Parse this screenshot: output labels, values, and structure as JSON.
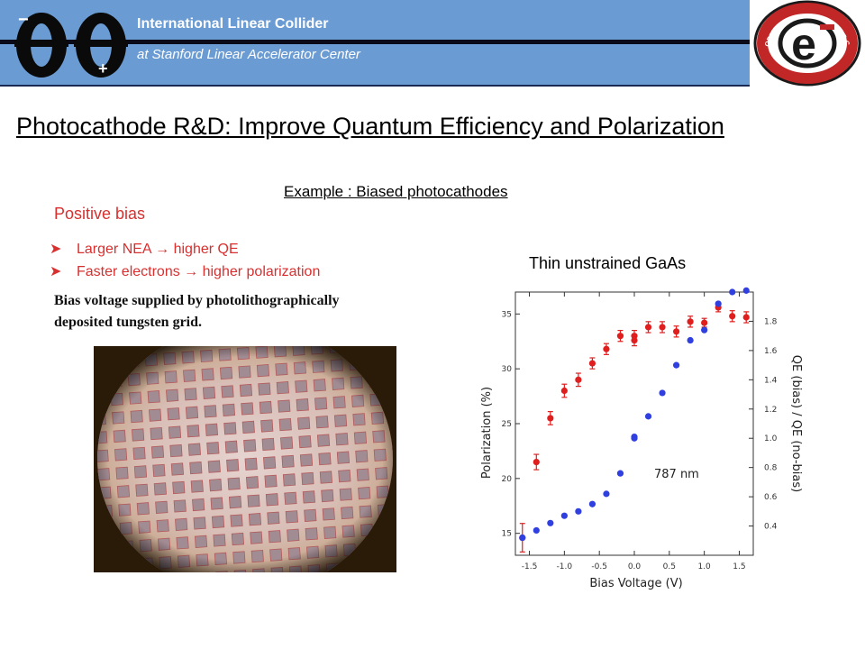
{
  "header": {
    "title": "International Linear Collider",
    "subtitle": "at Stanford Linear Accelerator Center",
    "logo_minus": "−",
    "logo_plus": "+"
  },
  "seal": {
    "top_ring_text": "STANFORD LINEAR ACCELERATOR CENTER",
    "bottom_ring_text": "ILC POLARIZED SOURCE",
    "center": "e"
  },
  "page_title": "Photocathode R&D: Improve Quantum Efficiency and Polarization",
  "example_heading": "Example : Biased photocathodes",
  "positive_bias": "Positive bias",
  "bullets": [
    "Larger NEA → higher QE",
    "Faster electrons → higher polarization"
  ],
  "bias_note": [
    "Bias voltage supplied by photolithographically",
    "deposited tungsten grid."
  ],
  "chart_heading": "Thin unstrained GaAs",
  "chart_data": {
    "type": "scatter",
    "xlabel": "Bias Voltage (V)",
    "ylabel": "Polarization (%)",
    "y2label": "QE (bias) / QE (no-bias)",
    "annotation": "787 nm",
    "xlim": [
      -1.7,
      1.7
    ],
    "ylim": [
      13,
      37
    ],
    "y2lim": [
      0.2,
      2.0
    ],
    "x_ticks": [
      -1.5,
      -1.0,
      -0.5,
      0.0,
      0.5,
      1.0,
      1.5
    ],
    "x_tick_labels": [
      "-1.5",
      "-1.0",
      "-0.5",
      "0.0",
      "0.5",
      "1.0",
      "1.5"
    ],
    "y_ticks": [
      15,
      20,
      25,
      30,
      35
    ],
    "y_tick_labels": [
      "15",
      "20",
      "25",
      "30",
      "35"
    ],
    "y2_ticks": [
      0.4,
      0.6,
      0.8,
      1.0,
      1.2,
      1.4,
      1.6,
      1.8
    ],
    "y2_tick_labels": [
      "0.4",
      "0.6",
      "0.8",
      "1.0",
      "1.2",
      "1.4",
      "1.6",
      "1.8"
    ],
    "grid": false,
    "series": [
      {
        "color": "#e01e1e",
        "axis": "left",
        "x": [
          -1.6,
          -1.4,
          -1.2,
          -1.0,
          -0.8,
          -0.6,
          -0.4,
          -0.2,
          0.0,
          0.0,
          0.2,
          0.4,
          0.6,
          0.8,
          1.0,
          1.2,
          1.4,
          1.6
        ],
        "y": [
          14.6,
          21.5,
          25.5,
          28.0,
          29.0,
          30.5,
          31.8,
          33.0,
          33.0,
          32.6,
          33.8,
          33.8,
          33.4,
          34.3,
          34.2,
          35.6,
          34.8,
          34.7
        ],
        "err": [
          1.3,
          0.7,
          0.6,
          0.6,
          0.6,
          0.5,
          0.5,
          0.5,
          0.5,
          0.5,
          0.5,
          0.5,
          0.5,
          0.5,
          0.4,
          0.4,
          0.5,
          0.5
        ]
      },
      {
        "color": "#2f3fe0",
        "axis": "right",
        "x": [
          -1.6,
          -1.4,
          -1.2,
          -1.0,
          -0.8,
          -0.6,
          -0.4,
          -0.2,
          0.0,
          0.0,
          0.2,
          0.4,
          0.6,
          0.8,
          1.0,
          1.2,
          1.4,
          1.6
        ],
        "y": [
          0.32,
          0.37,
          0.42,
          0.47,
          0.5,
          0.55,
          0.62,
          0.76,
          1.0,
          1.01,
          1.15,
          1.31,
          1.5,
          1.67,
          1.74,
          1.92,
          2.0,
          2.01
        ]
      }
    ]
  }
}
